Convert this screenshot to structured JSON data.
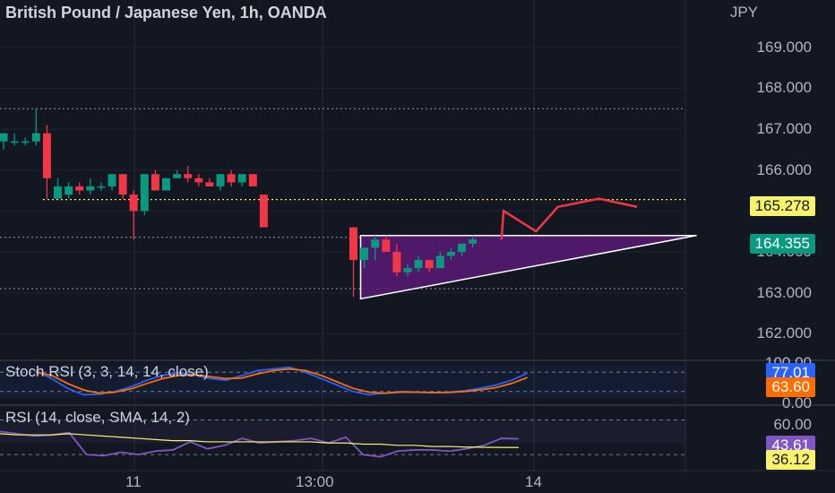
{
  "header": {
    "title": "British Pound / Japanese Yen, 1h, OANDA",
    "currency": "JPY"
  },
  "colors": {
    "background": "#131722",
    "up": "#089981",
    "down": "#f23645",
    "pattern_fill": "#5b1a76",
    "pattern_stroke": "#ffffff",
    "projection": "#f23645",
    "stoch_k": "#2962ff",
    "stoch_d": "#ff6d00",
    "rsi": "#7e57c2",
    "rsi_ma": "#f7f36b",
    "dotted_level": "#f7f36b"
  },
  "price_axis": {
    "ticks": [
      "169.000",
      "168.000",
      "167.000",
      "166.000",
      "165.000",
      "164.000",
      "163.000",
      "162.000"
    ],
    "tag_165": "165.278",
    "tag_last": "164.355"
  },
  "stoch": {
    "label": "Stoch RSI (3, 3, 14, 14, close)",
    "top_label": "100.00",
    "bottom_label": "0.00",
    "k_value": "77.01",
    "d_value": "63.60"
  },
  "rsi_panel": {
    "label": "RSI (14, close, SMA, 14, 2)",
    "top_label": "60.00",
    "rsi_value": "43.61",
    "ma_value": "36.12"
  },
  "x_axis": {
    "labels": [
      "11",
      "13:00",
      "14"
    ]
  },
  "chart_data": [
    {
      "type": "candlestick",
      "title": "British Pound / Japanese Yen, 1h, OANDA",
      "unit": "JPY",
      "ylim": [
        161.5,
        169.5
      ],
      "levels": [
        165.278,
        164.355,
        167.5,
        163.1
      ],
      "candles": [
        {
          "o": 166.7,
          "h": 166.9,
          "l": 166.5,
          "c": 166.9
        },
        {
          "o": 166.7,
          "h": 166.9,
          "l": 166.6,
          "c": 166.7
        },
        {
          "o": 166.7,
          "h": 166.8,
          "l": 166.6,
          "c": 166.7
        },
        {
          "o": 166.7,
          "h": 167.5,
          "l": 166.6,
          "c": 166.9
        },
        {
          "o": 166.9,
          "h": 167.1,
          "l": 165.3,
          "c": 165.8
        },
        {
          "o": 165.3,
          "h": 165.8,
          "l": 165.3,
          "c": 165.6
        },
        {
          "o": 165.4,
          "h": 165.7,
          "l": 165.3,
          "c": 165.6
        },
        {
          "o": 165.6,
          "h": 165.7,
          "l": 165.4,
          "c": 165.5
        },
        {
          "o": 165.5,
          "h": 165.8,
          "l": 165.4,
          "c": 165.6
        },
        {
          "o": 165.6,
          "h": 165.7,
          "l": 165.5,
          "c": 165.6
        },
        {
          "o": 165.6,
          "h": 165.9,
          "l": 165.5,
          "c": 165.9
        },
        {
          "o": 165.9,
          "h": 165.9,
          "l": 165.3,
          "c": 165.4
        },
        {
          "o": 165.4,
          "h": 165.5,
          "l": 164.3,
          "c": 165.0
        },
        {
          "o": 165.0,
          "h": 165.9,
          "l": 164.9,
          "c": 165.9
        },
        {
          "o": 165.9,
          "h": 166.0,
          "l": 165.5,
          "c": 165.5
        },
        {
          "o": 165.5,
          "h": 165.8,
          "l": 165.5,
          "c": 165.8
        },
        {
          "o": 165.8,
          "h": 166.0,
          "l": 165.8,
          "c": 165.9
        },
        {
          "o": 165.9,
          "h": 166.1,
          "l": 165.7,
          "c": 165.8
        },
        {
          "o": 165.8,
          "h": 165.9,
          "l": 165.6,
          "c": 165.7
        },
        {
          "o": 165.7,
          "h": 165.8,
          "l": 165.6,
          "c": 165.6
        },
        {
          "o": 165.6,
          "h": 165.9,
          "l": 165.5,
          "c": 165.9
        },
        {
          "o": 165.9,
          "h": 166.0,
          "l": 165.6,
          "c": 165.7
        },
        {
          "o": 165.7,
          "h": 165.9,
          "l": 165.6,
          "c": 165.9
        },
        {
          "o": 165.9,
          "h": 165.9,
          "l": 165.6,
          "c": 165.6
        },
        {
          "o": 165.4,
          "h": 165.4,
          "l": 164.6,
          "c": 164.6
        },
        {
          "o": 164.6,
          "h": 164.6,
          "l": 162.9,
          "c": 163.8
        },
        {
          "o": 163.8,
          "h": 164.1,
          "l": 163.6,
          "c": 164.1
        },
        {
          "o": 164.1,
          "h": 164.4,
          "l": 163.8,
          "c": 164.3
        },
        {
          "o": 164.3,
          "h": 164.4,
          "l": 164.0,
          "c": 164.0
        },
        {
          "o": 164.0,
          "h": 164.2,
          "l": 163.4,
          "c": 163.5
        },
        {
          "o": 163.5,
          "h": 163.7,
          "l": 163.4,
          "c": 163.6
        },
        {
          "o": 163.6,
          "h": 163.9,
          "l": 163.5,
          "c": 163.8
        },
        {
          "o": 163.8,
          "h": 163.8,
          "l": 163.5,
          "c": 163.6
        },
        {
          "o": 163.6,
          "h": 164.0,
          "l": 163.6,
          "c": 163.9
        },
        {
          "o": 163.9,
          "h": 164.1,
          "l": 163.8,
          "c": 164.0
        },
        {
          "o": 164.0,
          "h": 164.2,
          "l": 163.9,
          "c": 164.2
        },
        {
          "o": 164.2,
          "h": 164.4,
          "l": 164.1,
          "c": 164.3
        }
      ],
      "triangle": [
        [
          25,
          164.4
        ],
        [
          56,
          164.4
        ],
        [
          25,
          162.85
        ]
      ],
      "projection": [
        [
          37.0,
          164.3
        ],
        [
          37.2,
          165.0
        ],
        [
          40.2,
          164.5
        ],
        [
          42.2,
          165.1
        ],
        [
          46.0,
          165.3
        ],
        [
          49.5,
          165.1
        ]
      ]
    },
    {
      "type": "line",
      "title": "Stoch RSI (3, 3, 14, 14, close)",
      "ylim": [
        0,
        100
      ],
      "series": [
        {
          "name": "K",
          "values": [
            85,
            60,
            30,
            10,
            12,
            20,
            35,
            55,
            70,
            78,
            72,
            60,
            55,
            70,
            85,
            90,
            95,
            80,
            60,
            40,
            20,
            10,
            15,
            20,
            18,
            16,
            18,
            22,
            30,
            40,
            55,
            77
          ]
        },
        {
          "name": "D",
          "values": [
            80,
            70,
            45,
            25,
            15,
            18,
            28,
            45,
            60,
            70,
            72,
            66,
            60,
            62,
            75,
            85,
            90,
            85,
            70,
            50,
            30,
            18,
            15,
            18,
            18,
            17,
            17,
            20,
            25,
            32,
            45,
            63.6
          ]
        }
      ]
    },
    {
      "type": "line",
      "title": "RSI (14, close, SMA, 14, 2)",
      "ylim": [
        20,
        65
      ],
      "series": [
        {
          "name": "RSI",
          "values": [
            50,
            48,
            46,
            47,
            49,
            30,
            29,
            32,
            30,
            33,
            34,
            41,
            35,
            38,
            44,
            40,
            41,
            42,
            44,
            40,
            45,
            30,
            28,
            33,
            34,
            34,
            33,
            35,
            38,
            44,
            43.6
          ]
        },
        {
          "name": "MA",
          "values": [
            48,
            47,
            47,
            47,
            48,
            47,
            46,
            45,
            44,
            43,
            42,
            42,
            41,
            41,
            41,
            41,
            41,
            41,
            41,
            40,
            40,
            39,
            39,
            38,
            38,
            37,
            37,
            36.5,
            36.3,
            36.2,
            36.12
          ]
        }
      ]
    }
  ]
}
